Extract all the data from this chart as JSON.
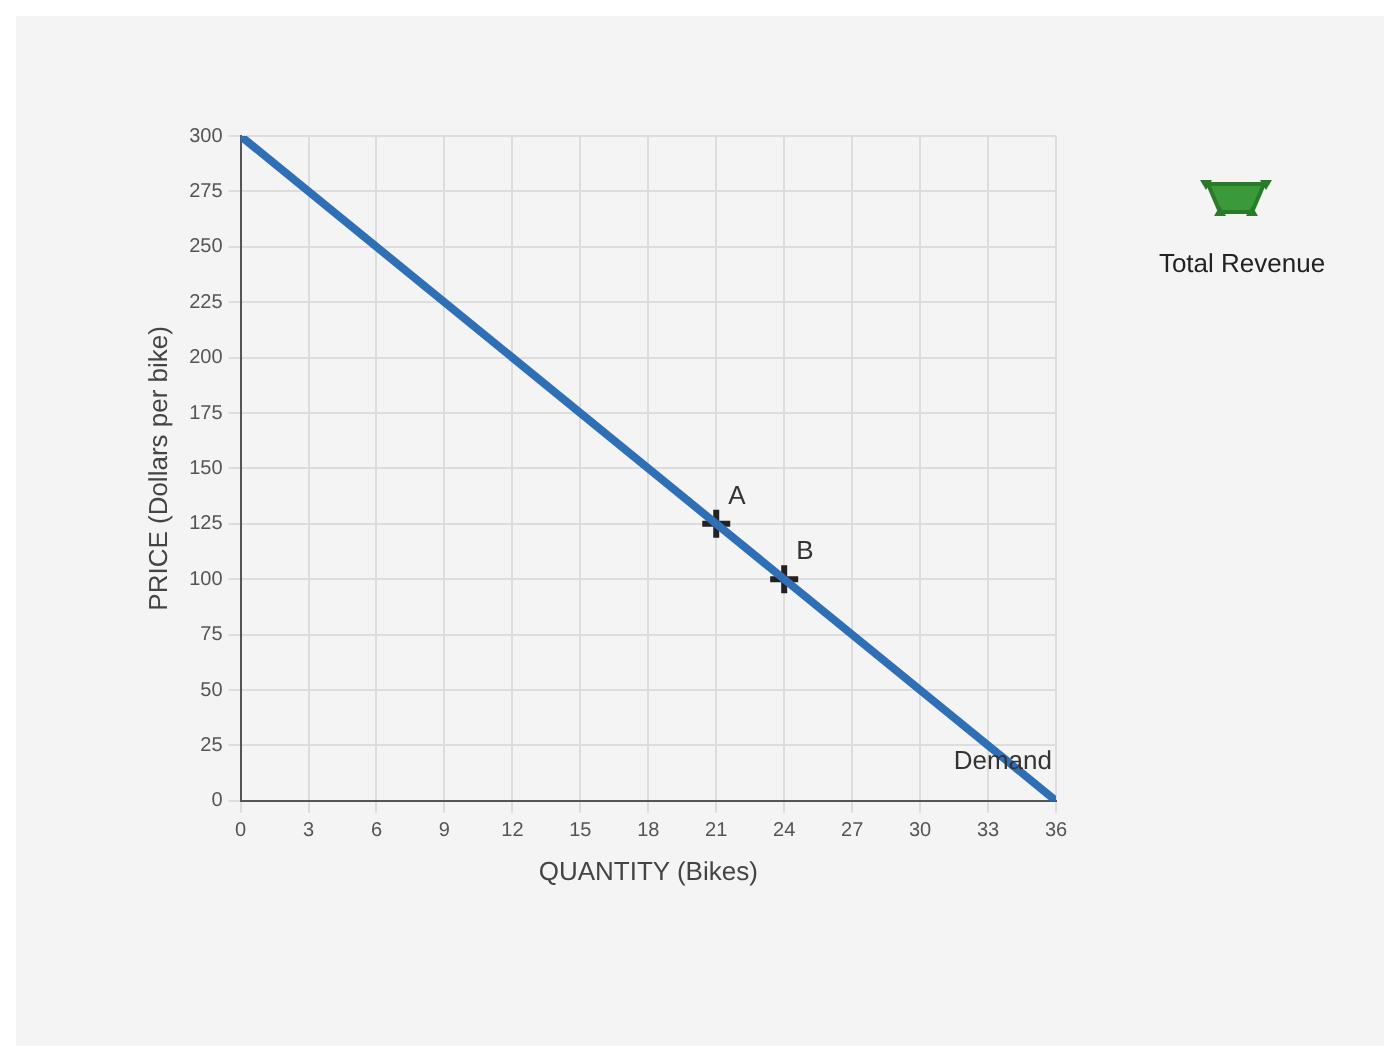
{
  "chart_data": {
    "type": "line",
    "xlabel": "QUANTITY (Bikes)",
    "ylabel": "PRICE (Dollars per bike)",
    "xlim": [
      0,
      36
    ],
    "xticks": [
      0,
      3,
      6,
      9,
      12,
      15,
      18,
      21,
      24,
      27,
      30,
      33,
      36
    ],
    "ylim": [
      0,
      300
    ],
    "yticks": [
      0,
      25,
      50,
      75,
      100,
      125,
      150,
      175,
      200,
      225,
      250,
      275,
      300
    ],
    "grid": true,
    "series": [
      {
        "name": "Demand",
        "color": "#2f6fb5",
        "x": [
          0,
          36
        ],
        "values": [
          300,
          0
        ],
        "marker": "none"
      },
      {
        "name": "A",
        "type": "scatter",
        "color": "#222222",
        "x": [
          21
        ],
        "values": [
          125
        ],
        "marker": "cross"
      },
      {
        "name": "B",
        "type": "scatter",
        "color": "#222222",
        "x": [
          24
        ],
        "values": [
          100
        ],
        "marker": "cross"
      }
    ],
    "annotations": [
      "Total Revenue"
    ]
  }
}
